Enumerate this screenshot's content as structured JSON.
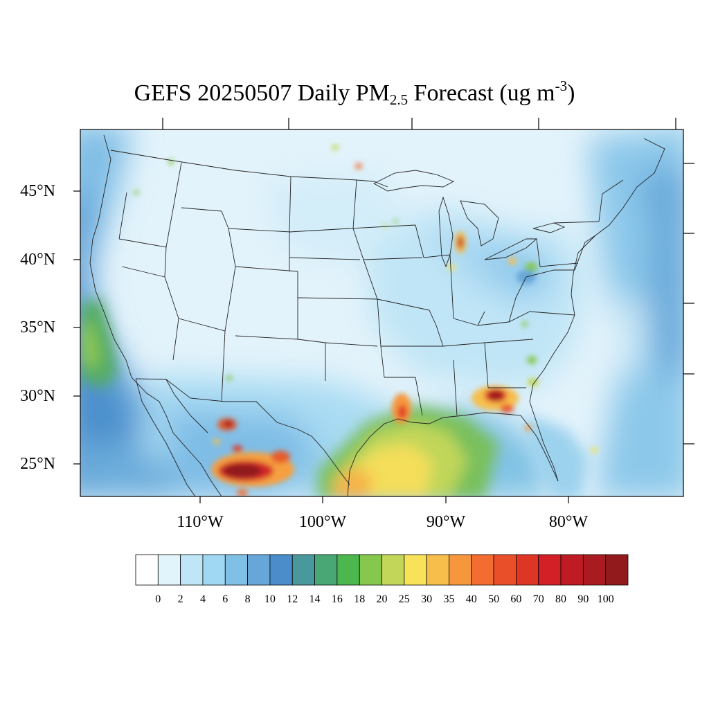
{
  "title": {
    "prefix": "GEFS 20250507 Daily PM",
    "subscript": "2.5",
    "middle": " Forecast (ug m",
    "superscript": "-3",
    "suffix": ")"
  },
  "map": {
    "variable": "Daily PM2.5",
    "units": "ug m-3",
    "region": "Contiguous United States",
    "lat_labels": [
      "45°N",
      "40°N",
      "35°N",
      "30°N",
      "25°N"
    ],
    "lon_labels": [
      "110°W",
      "100°W",
      "90°W",
      "80°W"
    ],
    "background_color": "#e3f3fb",
    "hotspots": [
      {
        "region": "Northern Mexico (Chihuahua)",
        "level": "70-100"
      },
      {
        "region": "Western Gulf Coast / South Texas",
        "level": "25-40"
      },
      {
        "region": "Southeast Louisiana",
        "level": "40-90"
      },
      {
        "region": "Southern Georgia / Florida panhandle",
        "level": "40-100"
      },
      {
        "region": "Lake Michigan west shore",
        "level": "40-100"
      }
    ]
  },
  "colorbar": {
    "labels": [
      "0",
      "2",
      "4",
      "6",
      "8",
      "10",
      "12",
      "14",
      "16",
      "18",
      "20",
      "25",
      "30",
      "35",
      "40",
      "50",
      "60",
      "70",
      "80",
      "90",
      "100"
    ],
    "colors": [
      "#ffffff",
      "#e1f3fb",
      "#bfe6f7",
      "#a0d8f3",
      "#80bfe6",
      "#66a6d8",
      "#4a8dca",
      "#49999c",
      "#48a775",
      "#4cb74f",
      "#86c74d",
      "#c2d65a",
      "#f7e25a",
      "#f7be4b",
      "#f7973d",
      "#f46d30",
      "#e9502a",
      "#df3525",
      "#d31f26",
      "#bf1b24",
      "#a91b20",
      "#921a1d"
    ]
  }
}
